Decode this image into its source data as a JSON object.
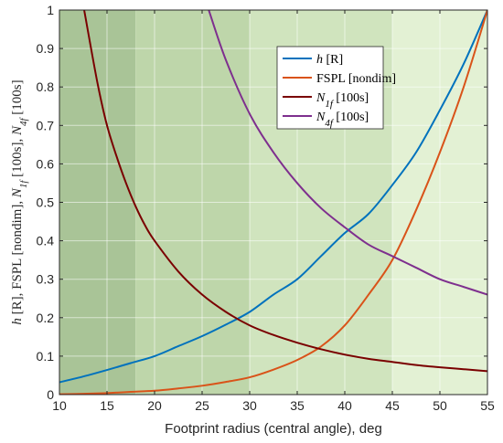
{
  "chart_data": {
    "type": "line",
    "xlabel": "Footprint radius (central angle), deg",
    "ylabel_parts": [
      {
        "text": "h",
        "italic": true
      },
      {
        "text": " [R],  FSPL [nondim],  "
      },
      {
        "text": "N",
        "italic": true
      },
      {
        "text": "1f",
        "sub": true,
        "italic": true
      },
      {
        "text": " [100s],  "
      },
      {
        "text": "N",
        "italic": true
      },
      {
        "text": "4f",
        "sub": true,
        "italic": true
      },
      {
        "text": " [100s]"
      }
    ],
    "xlim": [
      10,
      55
    ],
    "ylim": [
      0,
      1
    ],
    "xticks": [
      10,
      15,
      20,
      25,
      30,
      35,
      40,
      45,
      50,
      55
    ],
    "yticks": [
      0,
      0.1,
      0.2,
      0.3,
      0.4,
      0.5,
      0.6,
      0.7,
      0.8,
      0.9,
      1
    ],
    "ytick_labels": [
      "0",
      "0.1",
      "0.2",
      "0.3",
      "0.4",
      "0.5",
      "0.6",
      "0.7",
      "0.8",
      "0.9",
      "1"
    ],
    "grid": true,
    "legend_position": "top-right",
    "bands": [
      {
        "x0": 10,
        "x1": 18,
        "color": "#a9c497"
      },
      {
        "x0": 18,
        "x1": 30,
        "color": "#bed6aa"
      },
      {
        "x0": 30,
        "x1": 45,
        "color": "#d0e4be"
      },
      {
        "x0": 45,
        "x1": 55,
        "color": "#e3f1d4"
      }
    ],
    "series": [
      {
        "label_parts": [
          {
            "text": "h",
            "italic": true
          },
          {
            "text": " [R]"
          }
        ],
        "color": "#0072bd",
        "x": [
          10,
          12.5,
          15,
          17.5,
          20,
          22.5,
          25,
          27.5,
          30,
          32.5,
          35,
          37.5,
          40,
          42.5,
          45,
          47.5,
          50,
          52.5,
          55
        ],
        "y": [
          0.032,
          0.047,
          0.064,
          0.082,
          0.1,
          0.126,
          0.152,
          0.182,
          0.215,
          0.26,
          0.3,
          0.36,
          0.42,
          0.47,
          0.545,
          0.63,
          0.74,
          0.86,
          1.0
        ]
      },
      {
        "label_parts": [
          {
            "text": "FSPL [nondim]"
          }
        ],
        "color": "#d95319",
        "x": [
          10,
          12.5,
          15,
          17.5,
          20,
          22.5,
          25,
          27.5,
          30,
          32.5,
          35,
          37.5,
          40,
          42.5,
          45,
          47.5,
          50,
          52.5,
          55
        ],
        "y": [
          0.001,
          0.002,
          0.004,
          0.007,
          0.01,
          0.016,
          0.023,
          0.033,
          0.045,
          0.065,
          0.09,
          0.125,
          0.18,
          0.26,
          0.35,
          0.48,
          0.63,
          0.8,
          1.0
        ]
      },
      {
        "label_parts": [
          {
            "text": "N",
            "italic": true
          },
          {
            "text": "1f",
            "sub": true,
            "italic": true
          },
          {
            "text": " [100s]"
          }
        ],
        "color": "#7a0000",
        "x": [
          12.6,
          14,
          15,
          16,
          17,
          18,
          19,
          20,
          22.5,
          25,
          27.5,
          30,
          32.5,
          35,
          37.5,
          40,
          42.5,
          45,
          47.5,
          50,
          52.5,
          55
        ],
        "y": [
          1.0,
          0.81,
          0.7,
          0.62,
          0.55,
          0.49,
          0.44,
          0.4,
          0.32,
          0.26,
          0.215,
          0.18,
          0.155,
          0.135,
          0.118,
          0.104,
          0.093,
          0.085,
          0.077,
          0.071,
          0.066,
          0.061
        ]
      },
      {
        "label_parts": [
          {
            "text": "N",
            "italic": true
          },
          {
            "text": "4f",
            "sub": true,
            "italic": true
          },
          {
            "text": " [100s]"
          }
        ],
        "color": "#7e2f8e",
        "x": [
          25.7,
          27.5,
          30,
          32.5,
          35,
          37.5,
          40,
          42.5,
          45,
          47.5,
          50,
          52.5,
          55
        ],
        "y": [
          1.0,
          0.87,
          0.73,
          0.63,
          0.55,
          0.485,
          0.435,
          0.39,
          0.36,
          0.33,
          0.3,
          0.28,
          0.26
        ]
      }
    ]
  }
}
